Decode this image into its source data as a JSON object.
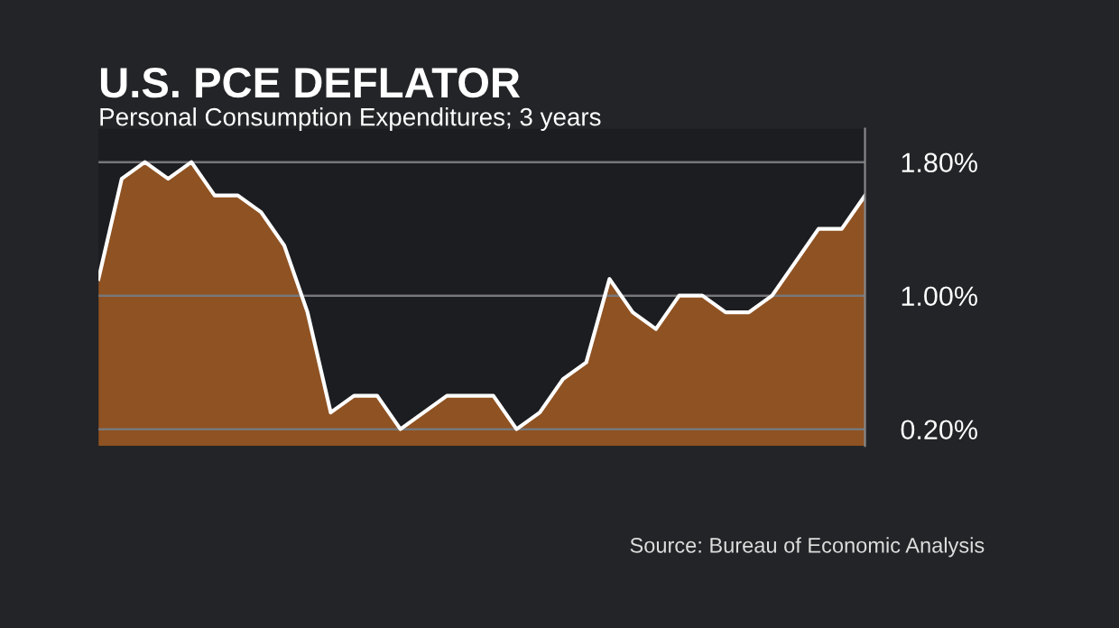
{
  "chart_data": {
    "type": "area",
    "title": "U.S. PCE DEFLATOR",
    "subtitle": "Personal Consumption Expenditures; 3 years",
    "annotations": [
      "Source: Bureau of Economic Analysis"
    ],
    "categories": [
      null,
      null,
      null,
      null,
      null,
      null,
      null,
      null,
      null,
      null,
      null,
      null,
      null,
      null,
      null,
      null,
      null,
      null,
      null,
      null,
      null,
      null,
      null,
      null,
      null,
      null,
      null,
      null,
      null,
      null,
      null,
      null,
      null,
      null
    ],
    "series": [
      {
        "color": "#a35c22",
        "values": [
          1.1,
          1.7,
          1.8,
          1.7,
          1.8,
          1.6,
          1.6,
          1.5,
          1.3,
          0.9,
          0.3,
          0.4,
          0.4,
          0.2,
          0.3,
          0.4,
          0.4,
          0.4,
          0.2,
          0.3,
          0.5,
          0.6,
          1.1,
          0.9,
          0.8,
          1.0,
          1.0,
          0.9,
          0.9,
          1.0,
          1.2,
          1.4,
          1.4,
          1.6
        ]
      }
    ],
    "ylim": [
      0.1,
      2.0
    ],
    "yticks": [
      {
        "value": 0.2,
        "label": "0.20%"
      },
      {
        "value": 1.0,
        "label": "1.00%"
      },
      {
        "value": 1.8,
        "label": "1.80%"
      }
    ],
    "grid": "y",
    "legend": false,
    "marker": "none",
    "line_style": "solid"
  }
}
